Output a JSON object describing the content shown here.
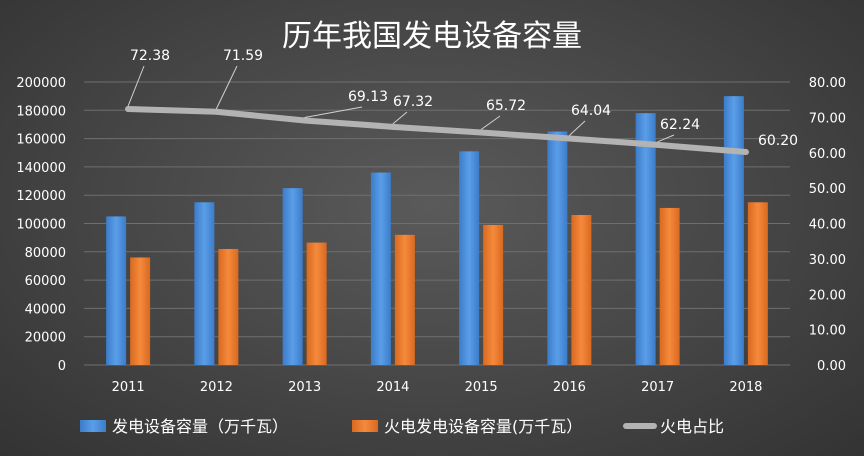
{
  "chart_data": {
    "type": "bar",
    "title": "历年我国发电设备容量",
    "categories": [
      "2011",
      "2012",
      "2013",
      "2014",
      "2015",
      "2016",
      "2017",
      "2018"
    ],
    "y_left": {
      "min": 0,
      "max": 200000,
      "step": 20000,
      "tick_labels": [
        "0",
        "20000",
        "40000",
        "60000",
        "80000",
        "100000",
        "120000",
        "140000",
        "160000",
        "180000",
        "200000"
      ]
    },
    "y_right": {
      "min": 0,
      "max": 80,
      "step": 10,
      "tick_labels": [
        "0.00",
        "10.00",
        "20.00",
        "30.00",
        "40.00",
        "50.00",
        "60.00",
        "70.00",
        "80.00"
      ]
    },
    "series": [
      {
        "name": "发电设备容量（万千瓦）",
        "type": "bar",
        "axis": "left",
        "color": "#4d8fd8",
        "values": [
          105000,
          115000,
          125000,
          136000,
          151000,
          165000,
          178000,
          190000
        ]
      },
      {
        "name": "火电发电设备容量(万千瓦）",
        "type": "bar",
        "axis": "left",
        "color": "#ed7d31",
        "values": [
          76000,
          82000,
          86500,
          92000,
          99000,
          106000,
          111000,
          115000
        ]
      },
      {
        "name": "火电占比",
        "type": "line",
        "axis": "right",
        "color": "#a6a6a6",
        "values": [
          72.38,
          71.59,
          69.13,
          67.32,
          65.72,
          64.04,
          62.24,
          60.2
        ],
        "labels": [
          "72.38",
          "71.59",
          "69.13",
          "67.32",
          "65.72",
          "64.04",
          "62.24",
          "60.20"
        ]
      }
    ],
    "grid": true,
    "legend_position": "bottom"
  }
}
